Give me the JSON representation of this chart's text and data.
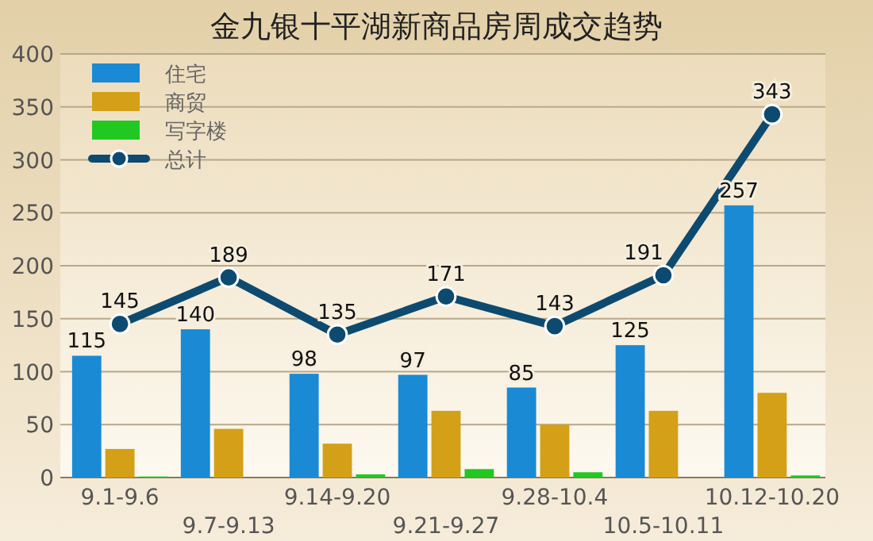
{
  "chart_data": {
    "type": "bar",
    "title": "金九银十平湖新商品房周成交趋势",
    "categories": [
      "9.1-9.6",
      "9.7-9.13",
      "9.14-9.20",
      "9.21-9.27",
      "9.28-10.4",
      "10.5-10.11",
      "10.12-10.20"
    ],
    "series": [
      {
        "name": "住宅",
        "color": "#1a8ad4",
        "values": [
          115,
          140,
          98,
          97,
          85,
          125,
          257
        ],
        "value_labels": [
          "115",
          "140",
          "98",
          "97",
          "85",
          "125",
          "257"
        ]
      },
      {
        "name": "商贸",
        "color": "#d4a017",
        "values": [
          27,
          46,
          32,
          63,
          50,
          63,
          80
        ]
      },
      {
        "name": "写字楼",
        "color": "#22c822",
        "values": [
          1,
          0,
          3,
          8,
          5,
          0,
          2
        ]
      },
      {
        "name": "总计",
        "type": "line",
        "color": "#0d4a70",
        "marker": "circle",
        "values": [
          145,
          189,
          135,
          171,
          143,
          191,
          343
        ],
        "value_labels": [
          "145",
          "189",
          "135",
          "171",
          "143",
          "191",
          "343"
        ]
      }
    ],
    "ylim": [
      0,
      400
    ],
    "yticks": [
      0,
      50,
      100,
      150,
      200,
      250,
      300,
      350,
      400
    ],
    "grid": "y",
    "legend": "top left"
  }
}
